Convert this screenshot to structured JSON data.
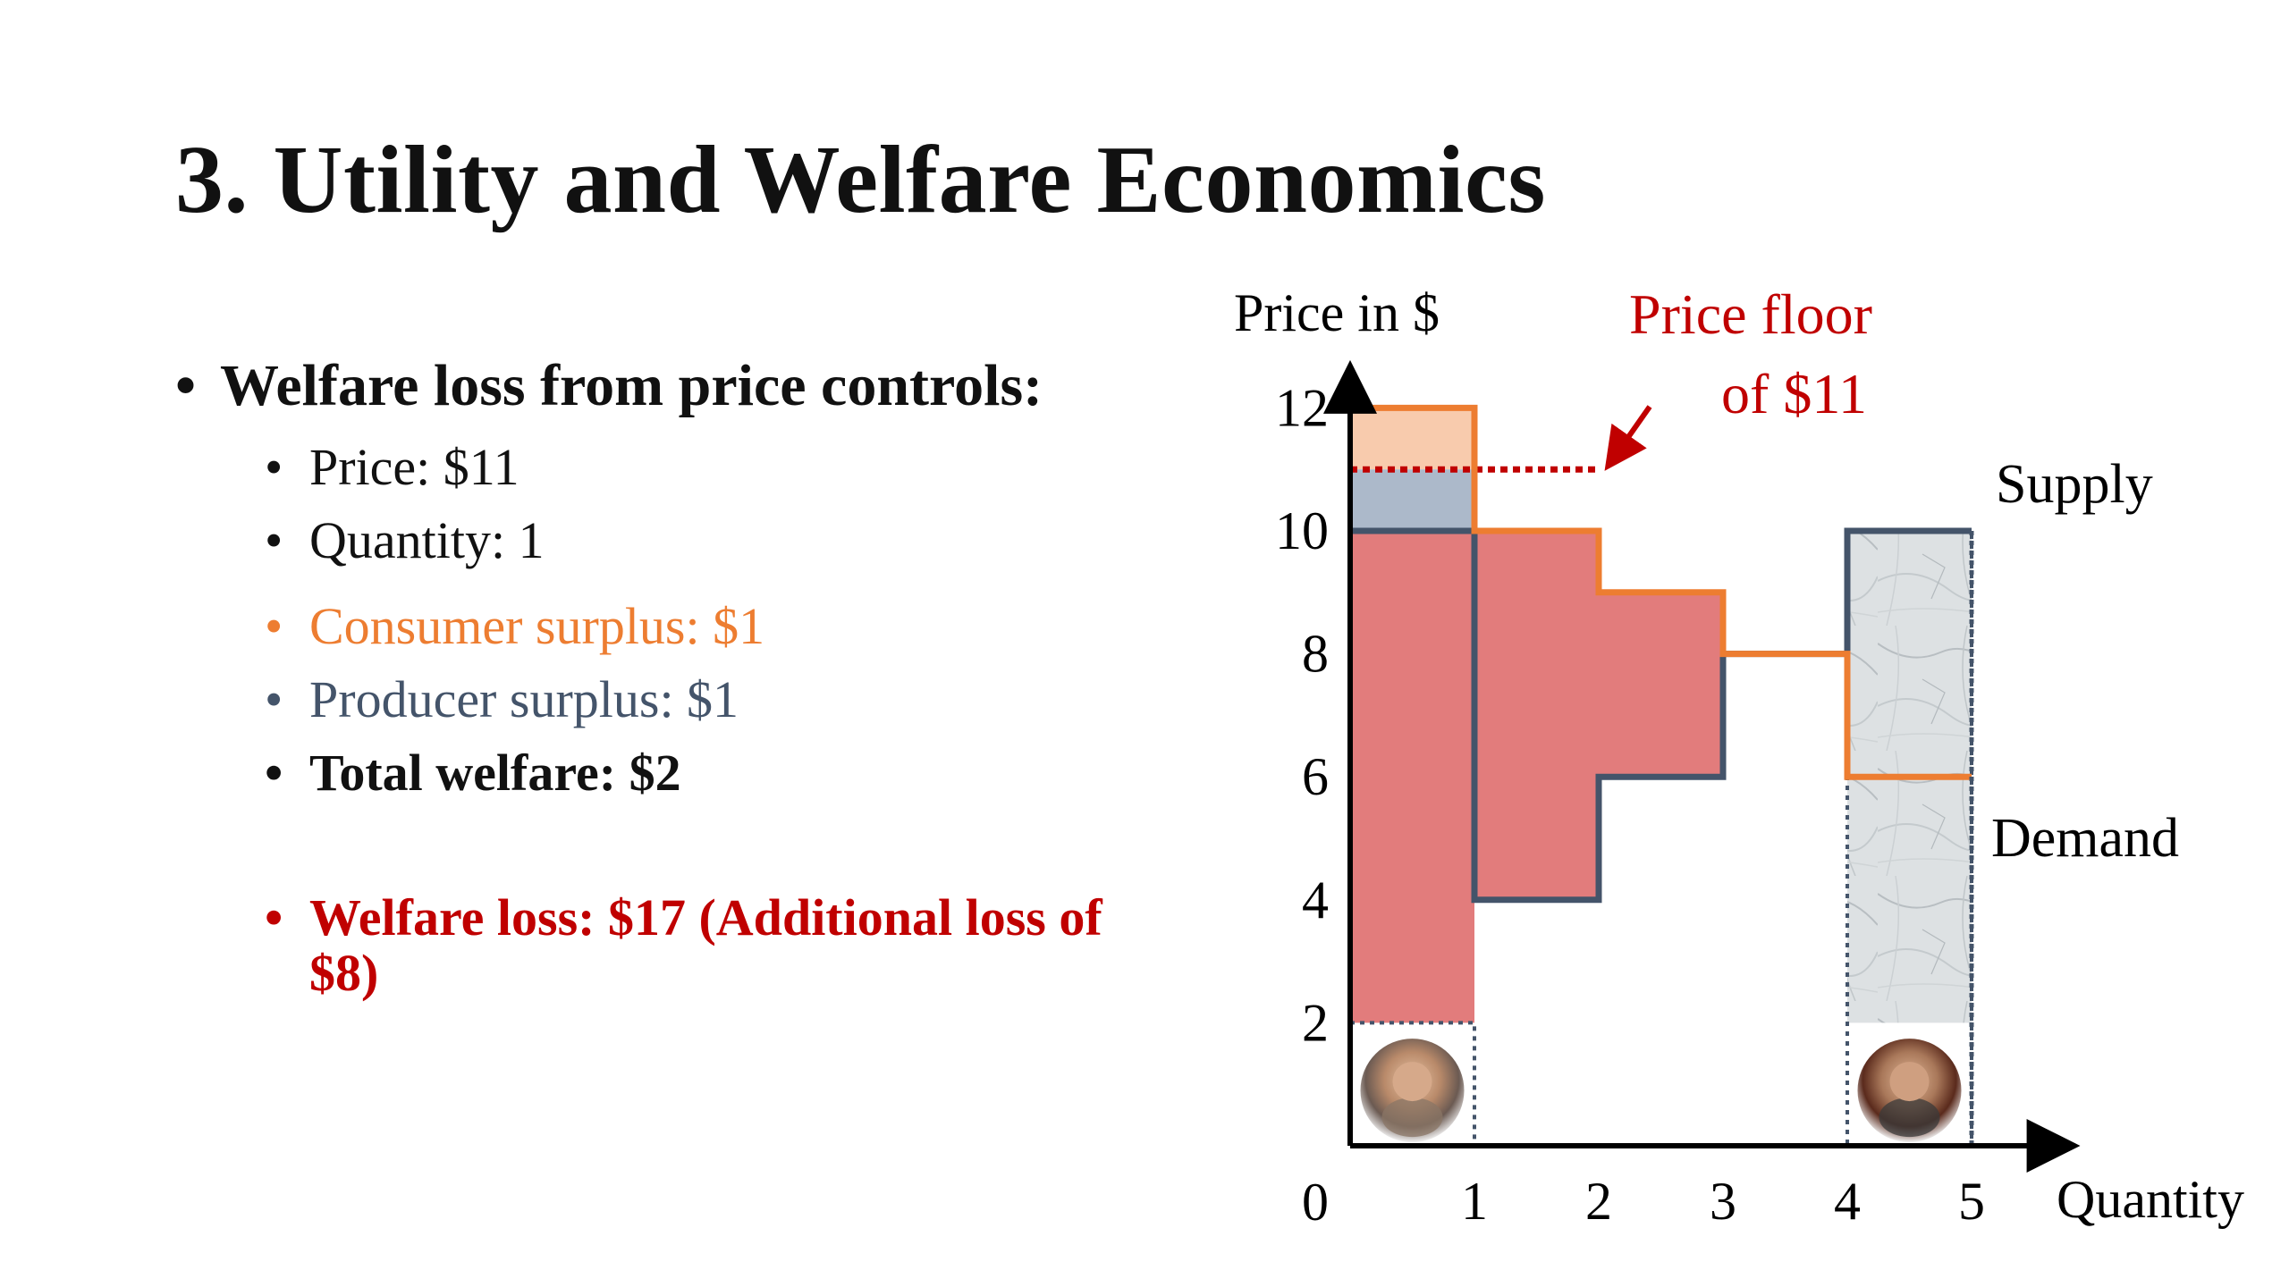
{
  "slide": {
    "title": "3. Utility and Welfare Economics",
    "bullets": {
      "main": "Welfare loss from price controls:",
      "price": "Price: $11",
      "quantity": "Quantity: 1",
      "consumer_surplus": "Consumer surplus: $1",
      "producer_surplus": "Producer surplus: $1",
      "total_welfare": "Total welfare: $2",
      "welfare_loss": "Welfare loss: $17 (Additional loss of $8)"
    }
  },
  "colors": {
    "consumer_surplus": "#f8cbad",
    "producer_surplus": "#acb9ca",
    "deadweight_loss": "#e27c7c",
    "demand_line": "#ed7d31",
    "supply_line": "#44546a",
    "price_floor": "#c00000",
    "axis": "#000000",
    "marble": "#dde1e3"
  },
  "chart_data": {
    "type": "step",
    "ylabel": "Price in $",
    "xlabel": "Quantity",
    "origin_label": "0",
    "xlim": [
      0,
      5.4
    ],
    "ylim": [
      0,
      12.4
    ],
    "xticks": [
      "1",
      "2",
      "3",
      "4",
      "5"
    ],
    "yticks": [
      "2",
      "4",
      "6",
      "8",
      "10",
      "12"
    ],
    "x_tick_values": [
      1,
      2,
      3,
      4,
      5
    ],
    "y_tick_values": [
      2,
      4,
      6,
      8,
      10,
      12
    ],
    "series": [
      {
        "name": "Supply",
        "role": "supply",
        "values": [
          {
            "x0": 0,
            "x1": 1,
            "price": 10
          },
          {
            "x0": 1,
            "x1": 2,
            "price": 4
          },
          {
            "x0": 2,
            "x1": 3,
            "price": 6
          },
          {
            "x0": 3,
            "x1": 4,
            "price": 8
          },
          {
            "x0": 4,
            "x1": 5,
            "price": 10
          }
        ]
      },
      {
        "name": "Demand",
        "role": "demand",
        "values": [
          {
            "x0": 0,
            "x1": 1,
            "price": 12
          },
          {
            "x0": 1,
            "x1": 2,
            "price": 10
          },
          {
            "x0": 2,
            "x1": 3,
            "price": 9
          },
          {
            "x0": 3,
            "x1": 4,
            "price": 8
          },
          {
            "x0": 4,
            "x1": 5,
            "price": 6
          }
        ]
      }
    ],
    "price_floor": {
      "value": 11,
      "x_end": 2,
      "label_line1": "Price floor",
      "label_line2": "of $11"
    },
    "regions": [
      {
        "name": "consumer-surplus",
        "x0": 0,
        "x1": 1,
        "y0": 11,
        "y1": 12,
        "color": "#f8cbad"
      },
      {
        "name": "producer-surplus",
        "x0": 0,
        "x1": 1,
        "y0": 10,
        "y1": 11,
        "color": "#acb9ca"
      },
      {
        "name": "welfare-loss-1",
        "x0": 0,
        "x1": 1,
        "y0": 2,
        "y1": 10,
        "color": "#e27c7c"
      },
      {
        "name": "welfare-loss-2",
        "x0": 1,
        "x1": 2,
        "y0": 4,
        "y1": 10,
        "color": "#e27c7c"
      },
      {
        "name": "welfare-loss-3",
        "x0": 2,
        "x1": 3,
        "y0": 6,
        "y1": 9,
        "color": "#e27c7c"
      }
    ],
    "marble_block": {
      "x0": 4,
      "x1": 5,
      "y0": 2,
      "y1": 10
    },
    "dotted_boxes": [
      {
        "x0": 0,
        "x1": 1,
        "y0": 0,
        "y1": 2
      },
      {
        "x0": 4,
        "x1": 5,
        "y0": 0,
        "y1": 10
      }
    ],
    "avatars": [
      {
        "name": "consumer-avatar",
        "x": 0.5,
        "y": 0.9
      },
      {
        "name": "producer-avatar",
        "x": 4.5,
        "y": 0.9
      }
    ]
  }
}
